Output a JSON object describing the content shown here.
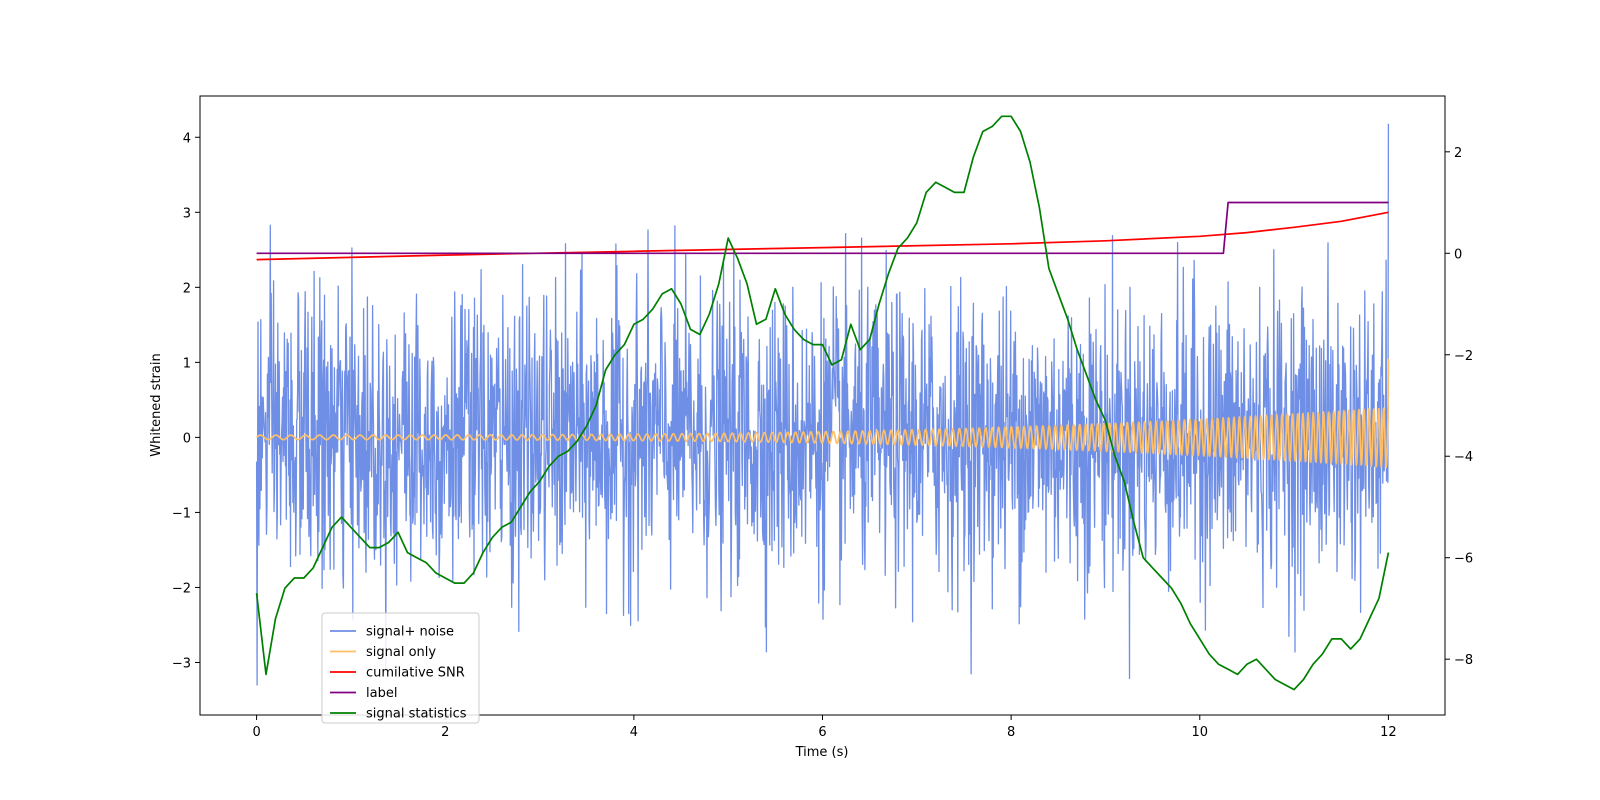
{
  "chart_data": {
    "type": "line",
    "title": "",
    "xlabel": "Time (s)",
    "ylabel": "Whitened strain",
    "y2label": "",
    "xlim": [
      -0.6,
      12.6
    ],
    "ylim": [
      -3.7,
      4.55
    ],
    "y2lim": [
      -9.1,
      3.1
    ],
    "xticks": [
      0,
      2,
      4,
      6,
      8,
      10,
      12
    ],
    "yticks": [
      -3,
      -2,
      -1,
      0,
      1,
      2,
      3,
      4
    ],
    "y2ticks": [
      -8,
      -6,
      -4,
      -2,
      0,
      2
    ],
    "grid": false,
    "legend_position": "lower-left",
    "legend": [
      "signal+ noise",
      "signal only",
      "cumilative SNR",
      "label",
      "signal statistics"
    ],
    "series": [
      {
        "name": "signal+ noise",
        "axis": "left",
        "color": "#6f8fe6",
        "kind": "noise",
        "x_start": 0,
        "x_end": 12,
        "samples": 2400,
        "amplitude_sd": 0.95,
        "y_min_observed": -3.3,
        "y_max_observed": 4.18
      },
      {
        "name": "signal only",
        "axis": "left",
        "color": "#ffbf66",
        "kind": "chirp",
        "x_start": 0,
        "x_end": 12,
        "amplitude_start": 0.03,
        "amplitude_end": 0.4,
        "final_value": 1.05
      },
      {
        "name": "cumilative SNR",
        "axis": "left",
        "color": "#ff0000",
        "x": [
          0,
          2,
          4,
          6,
          8,
          9,
          10,
          10.5,
          11,
          11.5,
          12
        ],
        "values": [
          2.37,
          2.43,
          2.48,
          2.53,
          2.58,
          2.62,
          2.68,
          2.73,
          2.8,
          2.88,
          3.0
        ]
      },
      {
        "name": "label",
        "axis": "right",
        "color": "#800080",
        "x": [
          0,
          10.25,
          10.3,
          12
        ],
        "values": [
          0,
          0,
          1,
          1
        ]
      },
      {
        "name": "signal statistics",
        "axis": "right",
        "color": "#008000",
        "x": [
          0,
          0.1,
          0.2,
          0.3,
          0.4,
          0.5,
          0.6,
          0.7,
          0.8,
          0.9,
          1.0,
          1.1,
          1.2,
          1.3,
          1.4,
          1.5,
          1.6,
          1.7,
          1.8,
          1.9,
          2.0,
          2.1,
          2.2,
          2.3,
          2.4,
          2.5,
          2.6,
          2.7,
          2.8,
          2.9,
          3.0,
          3.1,
          3.2,
          3.3,
          3.4,
          3.5,
          3.6,
          3.7,
          3.8,
          3.9,
          4.0,
          4.1,
          4.2,
          4.3,
          4.4,
          4.5,
          4.6,
          4.7,
          4.8,
          4.9,
          5.0,
          5.1,
          5.2,
          5.3,
          5.4,
          5.5,
          5.6,
          5.7,
          5.8,
          5.9,
          6.0,
          6.1,
          6.2,
          6.3,
          6.4,
          6.5,
          6.6,
          6.7,
          6.8,
          6.9,
          7.0,
          7.1,
          7.2,
          7.3,
          7.4,
          7.5,
          7.6,
          7.7,
          7.8,
          7.9,
          8.0,
          8.1,
          8.2,
          8.3,
          8.4,
          8.5,
          8.6,
          8.7,
          8.8,
          8.9,
          9.0,
          9.1,
          9.2,
          9.3,
          9.4,
          9.5,
          9.6,
          9.7,
          9.8,
          9.9,
          10.0,
          10.1,
          10.2,
          10.3,
          10.4,
          10.5,
          10.6,
          10.7,
          10.8,
          10.9,
          11.0,
          11.1,
          11.2,
          11.3,
          11.4,
          11.5,
          11.6,
          11.7,
          11.8,
          11.9,
          12.0
        ],
        "values": [
          -6.7,
          -8.3,
          -7.2,
          -6.6,
          -6.4,
          -6.4,
          -6.2,
          -5.8,
          -5.4,
          -5.2,
          -5.4,
          -5.6,
          -5.8,
          -5.8,
          -5.7,
          -5.5,
          -5.9,
          -6.0,
          -6.1,
          -6.3,
          -6.4,
          -6.5,
          -6.5,
          -6.3,
          -5.9,
          -5.6,
          -5.4,
          -5.3,
          -5.0,
          -4.7,
          -4.5,
          -4.2,
          -4.0,
          -3.9,
          -3.7,
          -3.4,
          -3.0,
          -2.3,
          -2.0,
          -1.8,
          -1.4,
          -1.3,
          -1.1,
          -0.8,
          -0.7,
          -1.0,
          -1.5,
          -1.6,
          -1.2,
          -0.6,
          0.3,
          -0.1,
          -0.6,
          -1.4,
          -1.3,
          -0.7,
          -1.2,
          -1.5,
          -1.7,
          -1.8,
          -1.8,
          -2.2,
          -2.1,
          -1.4,
          -1.9,
          -1.7,
          -1.0,
          -0.4,
          0.1,
          0.3,
          0.6,
          1.2,
          1.4,
          1.3,
          1.2,
          1.2,
          1.9,
          2.4,
          2.5,
          2.7,
          2.7,
          2.4,
          1.8,
          0.9,
          -0.3,
          -0.8,
          -1.3,
          -1.9,
          -2.4,
          -2.9,
          -3.3,
          -4.0,
          -4.5,
          -5.3,
          -6.0,
          -6.2,
          -6.4,
          -6.6,
          -6.9,
          -7.3,
          -7.6,
          -7.9,
          -8.1,
          -8.2,
          -8.3,
          -8.1,
          -8.0,
          -8.2,
          -8.4,
          -8.5,
          -8.6,
          -8.4,
          -8.1,
          -7.9,
          -7.6,
          -7.6,
          -7.8,
          -7.6,
          -7.2,
          -6.8,
          -5.9
        ]
      }
    ]
  }
}
